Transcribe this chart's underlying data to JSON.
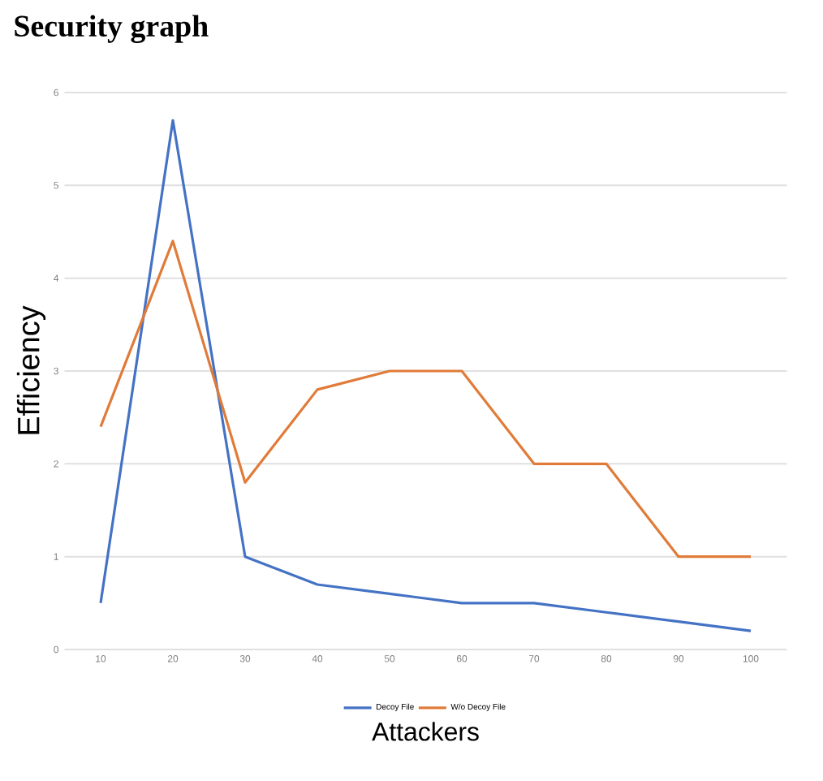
{
  "chart_data": {
    "type": "line",
    "title": "Security graph",
    "xlabel": "Attackers",
    "ylabel": "Efficiency",
    "categories": [
      "10",
      "20",
      "30",
      "40",
      "50",
      "60",
      "70",
      "80",
      "90",
      "100"
    ],
    "series": [
      {
        "name": "Decoy File",
        "color": "#4472c4",
        "values": [
          0.5,
          5.7,
          1.0,
          0.7,
          0.6,
          0.5,
          0.5,
          0.4,
          0.3,
          0.2
        ]
      },
      {
        "name": "W/o Decoy File",
        "color": "#e07b39",
        "values": [
          2.4,
          4.4,
          1.8,
          2.8,
          3.0,
          3.0,
          2.0,
          2.0,
          1.0,
          1.0
        ]
      }
    ],
    "ylim": [
      0,
      6
    ],
    "yticks": [
      0,
      1,
      2,
      3,
      4,
      5,
      6
    ],
    "grid": "y",
    "legend": "bottom"
  }
}
